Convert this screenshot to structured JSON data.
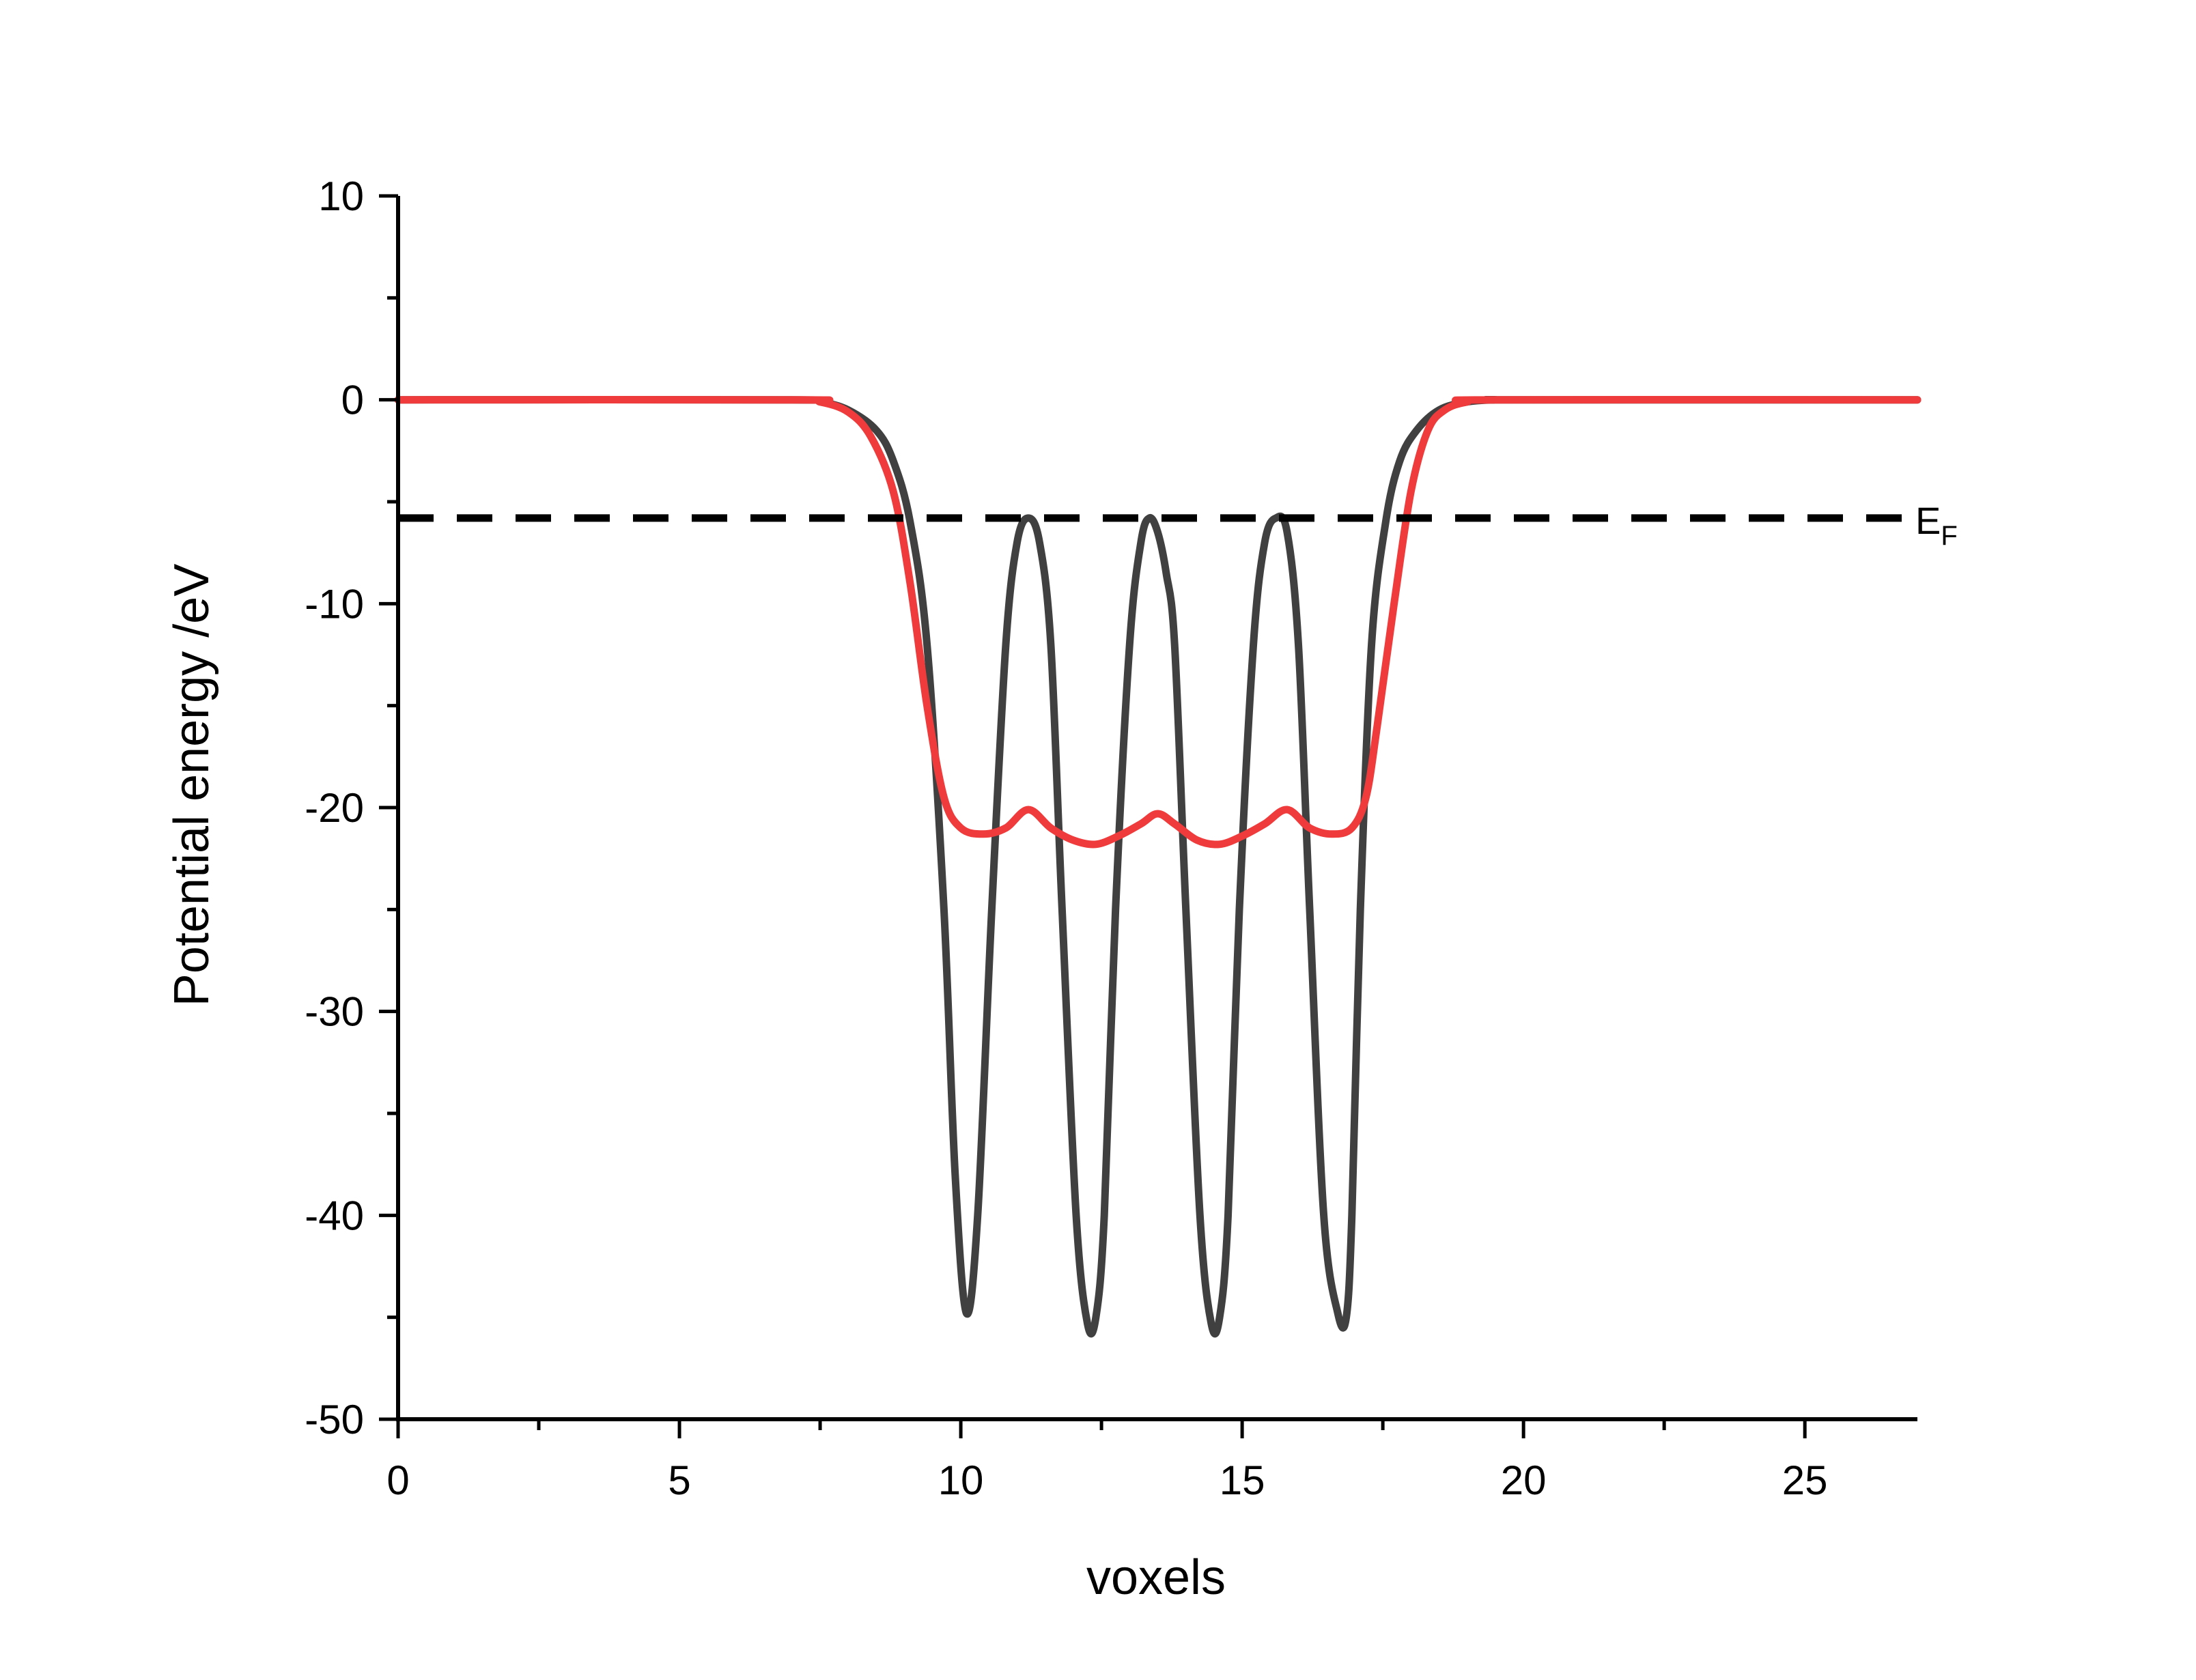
{
  "chart_data": {
    "type": "line",
    "xlabel": "voxels",
    "ylabel": "Potential energy /eV",
    "xlim": [
      0,
      27
    ],
    "ylim": [
      -50,
      10
    ],
    "x_ticks": [
      0,
      5,
      10,
      15,
      20,
      25
    ],
    "y_ticks": [
      -50,
      -40,
      -30,
      -20,
      -10,
      0,
      10
    ],
    "grid": false,
    "legend": "none",
    "series": [
      {
        "color": "#404040",
        "x": [
          0,
          7.0,
          7.5,
          8.0,
          8.5,
          8.8,
          9.1,
          9.4,
          9.7,
          9.9,
          10.1,
          10.3,
          10.55,
          10.8,
          11.0,
          11.2,
          11.4,
          11.6,
          11.8,
          12.05,
          12.25,
          12.4,
          12.55,
          12.75,
          13.0,
          13.2,
          13.35,
          13.5,
          13.65,
          13.8,
          14.0,
          14.25,
          14.45,
          14.6,
          14.75,
          14.95,
          15.2,
          15.4,
          15.6,
          15.8,
          16.0,
          16.2,
          16.45,
          16.7,
          16.85,
          16.95,
          17.1,
          17.3,
          17.55,
          17.8,
          18.1,
          18.5,
          19.0,
          19.5,
          20.0,
          27
        ],
        "y": [
          0,
          0,
          -0.1,
          -0.5,
          -1.5,
          -3,
          -6,
          -12,
          -25,
          -38,
          -44.8,
          -40,
          -25,
          -12,
          -7,
          -5.8,
          -7,
          -12,
          -25,
          -40,
          -45.3,
          -45,
          -40,
          -25,
          -12,
          -7,
          -5.8,
          -6.5,
          -8.5,
          -12,
          -25,
          -40,
          -45.3,
          -45,
          -40,
          -25,
          -12,
          -7,
          -5.8,
          -6.5,
          -12,
          -25,
          -40,
          -44.8,
          -45,
          -40,
          -25,
          -12,
          -6,
          -3,
          -1.5,
          -0.5,
          -0.1,
          0,
          0,
          0
        ]
      },
      {
        "color": "#ef3b3b",
        "x": [
          0,
          7.0,
          7.5,
          8.0,
          8.4,
          8.8,
          9.1,
          9.4,
          9.7,
          10.0,
          10.4,
          10.8,
          11.2,
          11.6,
          12.0,
          12.4,
          12.8,
          13.2,
          13.5,
          13.8,
          14.2,
          14.6,
          15.0,
          15.4,
          15.8,
          16.2,
          16.6,
          16.95,
          17.2,
          17.4,
          17.7,
          18.0,
          18.3,
          18.6,
          19.0,
          19.5,
          27
        ],
        "y": [
          0,
          0,
          -0.1,
          -0.6,
          -1.8,
          -4.5,
          -9,
          -15,
          -19.5,
          -21.0,
          -21.3,
          -21.0,
          -20.1,
          -21.0,
          -21.6,
          -21.8,
          -21.4,
          -20.8,
          -20.3,
          -20.8,
          -21.6,
          -21.8,
          -21.4,
          -20.8,
          -20.1,
          -21.0,
          -21.3,
          -21.0,
          -19.5,
          -16,
          -10,
          -4.5,
          -1.5,
          -0.5,
          -0.1,
          0,
          0
        ]
      }
    ],
    "reference_lines": [
      {
        "y": -5.8,
        "style": "dashed",
        "color": "#000000",
        "label": "E",
        "label_sub": "F"
      }
    ]
  }
}
